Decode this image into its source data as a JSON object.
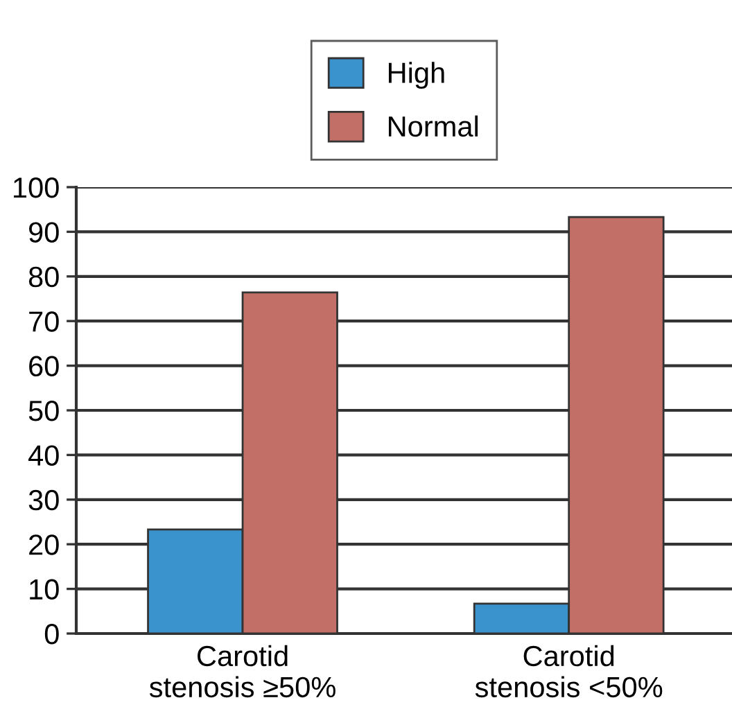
{
  "chart_data": {
    "type": "bar",
    "categories": [
      "Carotid\nstenosis ≥50%",
      "Carotid\nstenosis <50%"
    ],
    "series": [
      {
        "name": "High",
        "color": "#3a93cc",
        "values": [
          23.3,
          6.7
        ]
      },
      {
        "name": "Normal",
        "color": "#c16f67",
        "values": [
          76.4,
          93.3
        ]
      }
    ],
    "ylim": [
      0,
      100
    ],
    "yticks": [
      0,
      10,
      20,
      30,
      40,
      50,
      60,
      70,
      80,
      90,
      100
    ],
    "grid": "y",
    "legend": "top"
  }
}
